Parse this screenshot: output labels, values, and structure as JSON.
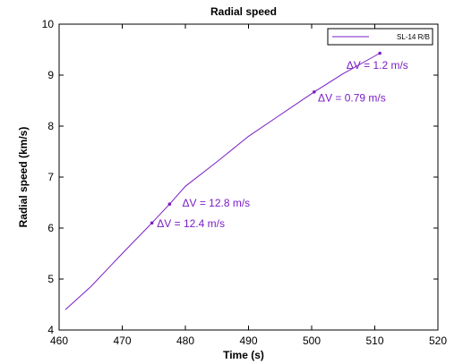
{
  "chart_data": {
    "type": "line",
    "title": "Radial speed",
    "xlabel": "Time (s)",
    "ylabel": "Radial speed (km/s)",
    "xlim": [
      460,
      520
    ],
    "ylim": [
      4,
      10
    ],
    "x_ticks": [
      460,
      470,
      480,
      490,
      500,
      510,
      520
    ],
    "y_ticks": [
      4,
      5,
      6,
      7,
      8,
      9,
      10
    ],
    "grid": false,
    "legend_position": "top-right",
    "series_color": "#7a1ec4",
    "series": [
      {
        "name": "SL-14 R/B",
        "x": [
          461,
          465,
          470,
          474.7,
          477.5,
          480,
          485,
          490,
          495,
          500.4,
          505,
          510.8
        ],
        "y": [
          4.4,
          4.85,
          5.5,
          6.1,
          6.47,
          6.82,
          7.3,
          7.8,
          8.22,
          8.67,
          9.03,
          9.43
        ],
        "markers": [
          {
            "x": 474.7,
            "y": 6.1
          },
          {
            "x": 477.5,
            "y": 6.47
          },
          {
            "x": 500.4,
            "y": 8.67
          },
          {
            "x": 510.8,
            "y": 9.43
          }
        ]
      }
    ],
    "annotations": [
      {
        "text": "ΔV = 12.4 m/s",
        "x": 475.5,
        "y": 6.02
      },
      {
        "text": "ΔV =  12.8 m/s",
        "x": 479.5,
        "y": 6.42
      },
      {
        "text": "ΔV = 0.79 m/s",
        "x": 501,
        "y": 8.48
      },
      {
        "text": "ΔV = 1.2 m/s",
        "x": 505.5,
        "y": 9.12
      }
    ]
  }
}
